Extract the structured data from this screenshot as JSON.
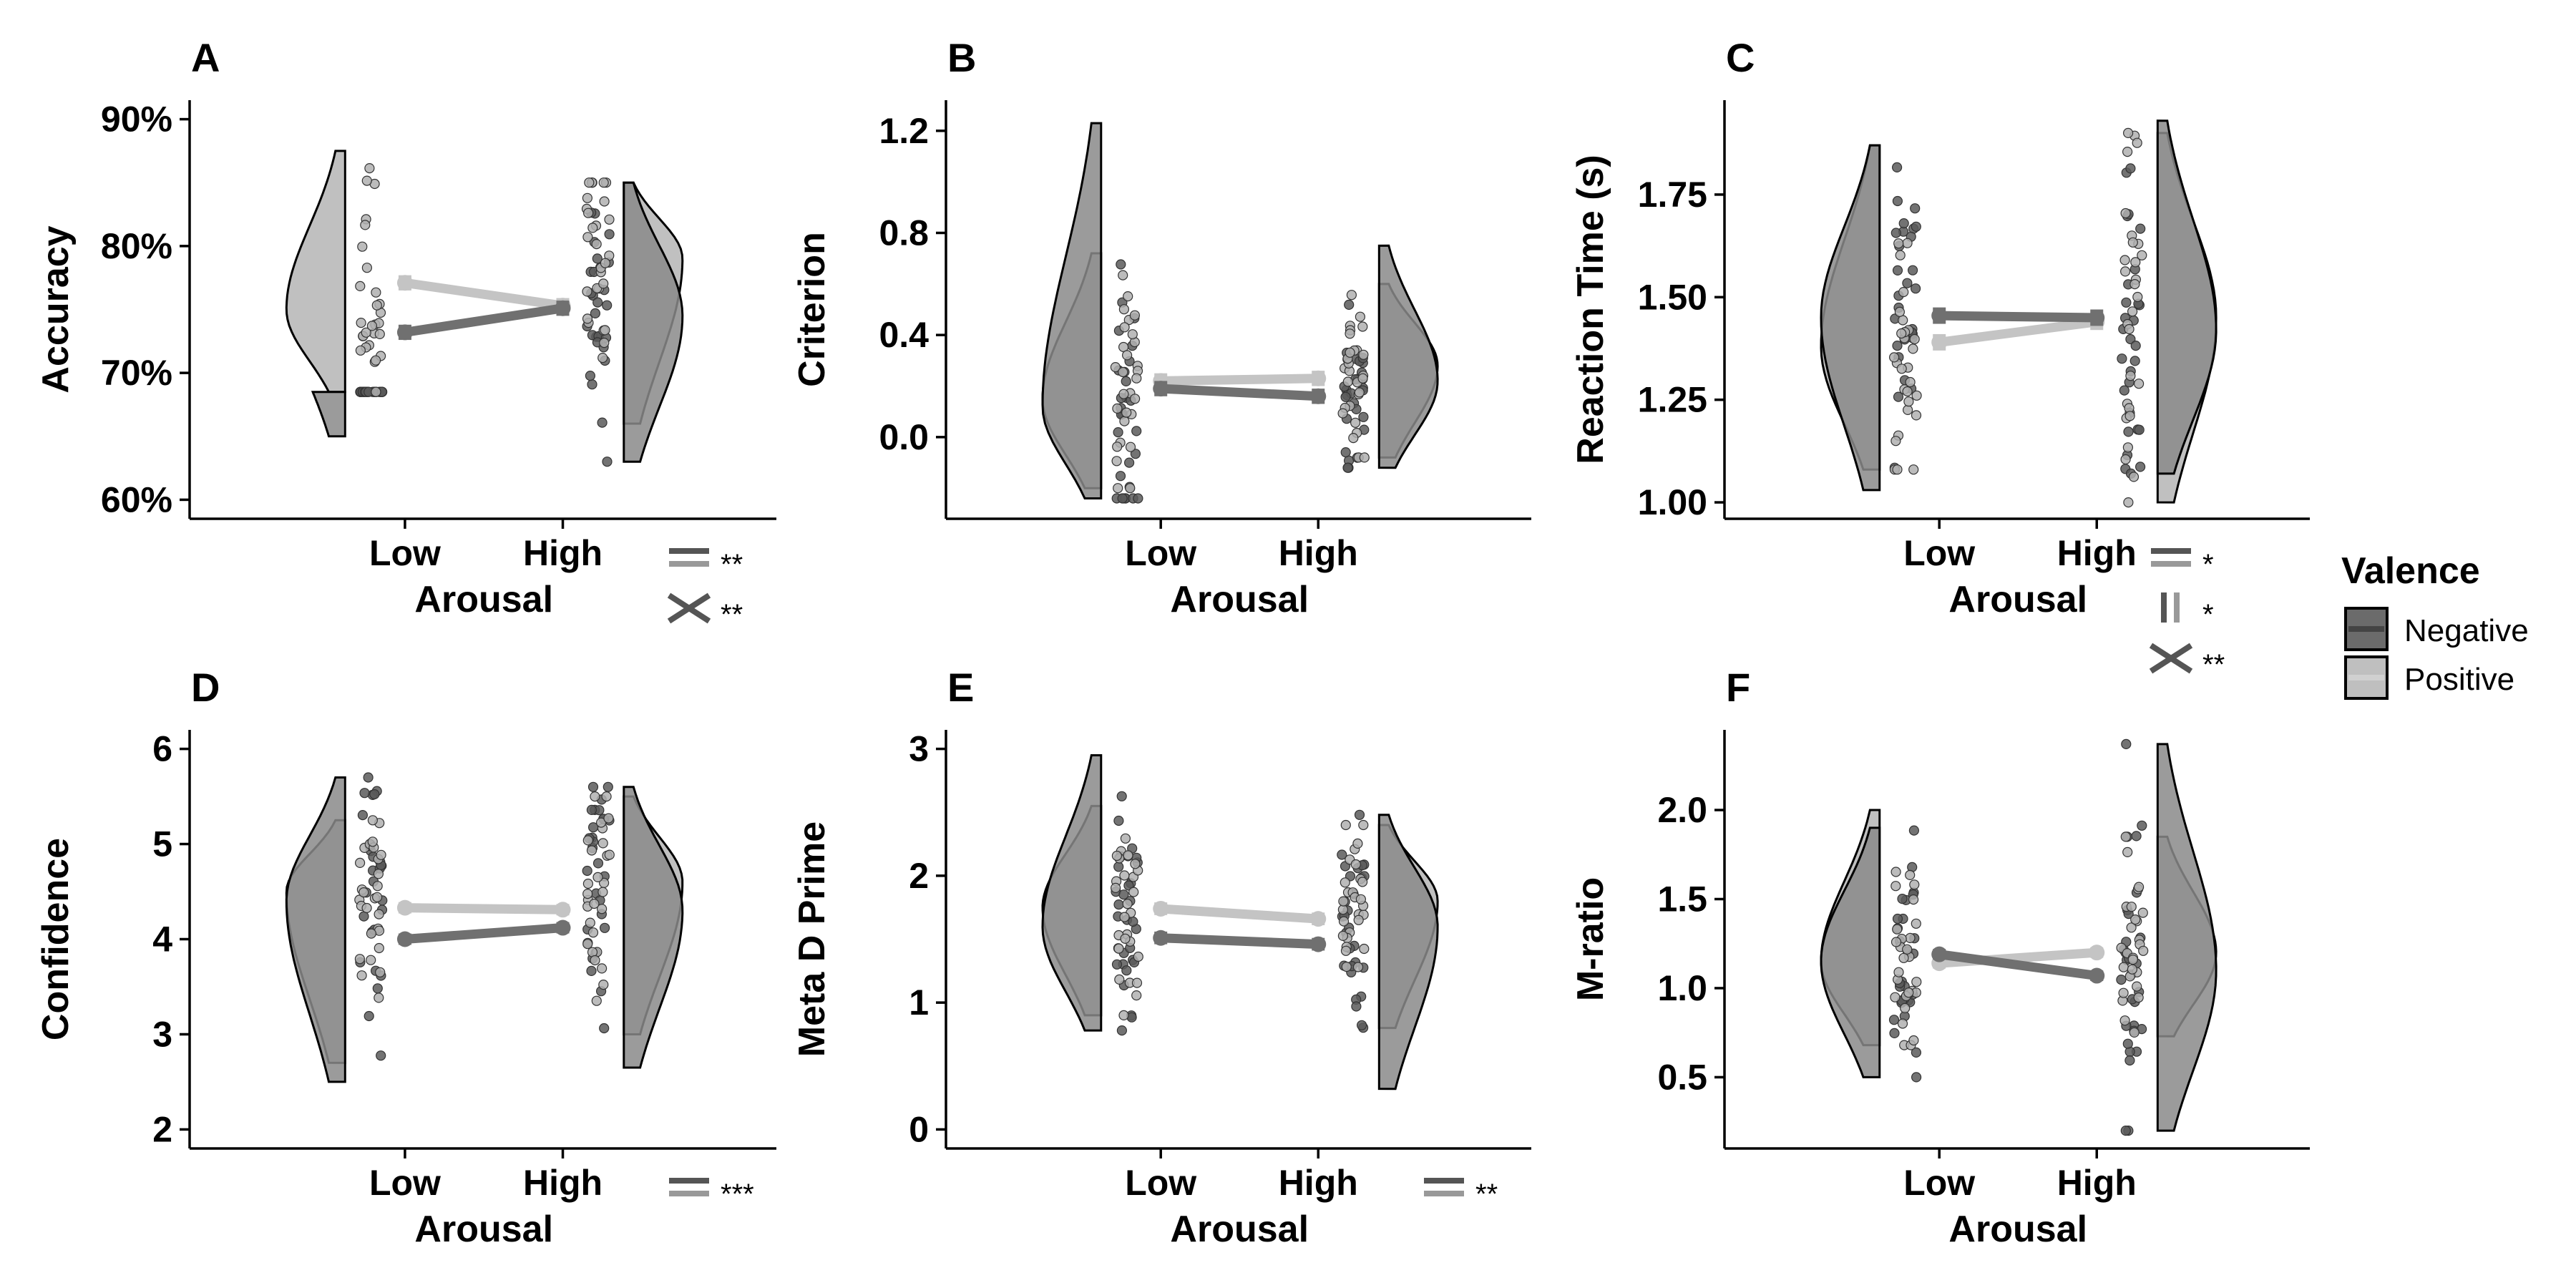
{
  "colors": {
    "negative": "#6b6b6b",
    "positive": "#bfbfbf",
    "neg_violin": "#8a8a8a",
    "pos_violin": "#b5b5b5",
    "axis": "#000000"
  },
  "legend": {
    "title": "Valence",
    "items": [
      {
        "label": "Negative",
        "color": "#6b6b6b"
      },
      {
        "label": "Positive",
        "color": "#bfbfbf"
      }
    ]
  },
  "chart_data": [
    {
      "panel": "A",
      "type": "raincloud",
      "ylabel": "Accuracy",
      "xlabel": "Arousal",
      "categories": [
        "Low",
        "High"
      ],
      "ylim": [
        0.585,
        0.915
      ],
      "yticks": [
        0.6,
        0.7,
        0.8,
        0.9
      ],
      "yticklabels": [
        "60%",
        "70%",
        "80%",
        "90%"
      ],
      "series": [
        {
          "name": "Negative",
          "values": [
            0.732,
            0.751
          ],
          "errors": [
            0.006,
            0.006
          ],
          "violin_low": [
            0.65,
            0.76,
            0.685
          ],
          "violin_high": [
            0.63,
            0.745,
            0.85
          ]
        },
        {
          "name": "Positive",
          "values": [
            0.771,
            0.753
          ],
          "errors": [
            0.006,
            0.006
          ],
          "violin_low": [
            0.685,
            0.75,
            0.875
          ],
          "violin_high": [
            0.66,
            0.79,
            0.85
          ]
        }
      ],
      "significance": [
        {
          "symbol": "=",
          "stars": "**"
        },
        {
          "symbol": "×",
          "stars": "**"
        }
      ]
    },
    {
      "panel": "B",
      "type": "raincloud",
      "ylabel": "Criterion",
      "xlabel": "Arousal",
      "categories": [
        "Low",
        "High"
      ],
      "ylim": [
        -0.32,
        1.32
      ],
      "yticks": [
        0.0,
        0.4,
        0.8,
        1.2
      ],
      "yticklabels": [
        "0.0",
        "0.4",
        "0.8",
        "1.2"
      ],
      "series": [
        {
          "name": "Negative",
          "values": [
            0.19,
            0.16
          ],
          "errors": [
            0.03,
            0.03
          ],
          "violin_low": [
            -0.24,
            0.12,
            1.23
          ],
          "violin_high": [
            -0.12,
            0.22,
            0.75
          ]
        },
        {
          "name": "Positive",
          "values": [
            0.22,
            0.23
          ],
          "errors": [
            0.03,
            0.03
          ],
          "violin_low": [
            -0.2,
            0.15,
            0.72
          ],
          "violin_high": [
            -0.08,
            0.28,
            0.6
          ]
        }
      ],
      "significance": []
    },
    {
      "panel": "C",
      "type": "raincloud",
      "ylabel": "Reaction Time (s)",
      "xlabel": "Arousal",
      "categories": [
        "Low",
        "High"
      ],
      "ylim": [
        0.96,
        1.98
      ],
      "yticks": [
        1.0,
        1.25,
        1.5,
        1.75
      ],
      "yticklabels": [
        "1.00",
        "1.25",
        "1.50",
        "1.75"
      ],
      "series": [
        {
          "name": "Negative",
          "values": [
            1.455,
            1.45
          ],
          "errors": [
            0.02,
            0.02
          ],
          "violin_low": [
            1.03,
            1.45,
            1.87
          ],
          "violin_high": [
            1.07,
            1.42,
            1.93
          ]
        },
        {
          "name": "Positive",
          "values": [
            1.39,
            1.44
          ],
          "errors": [
            0.02,
            0.02
          ],
          "violin_low": [
            1.08,
            1.38,
            1.87
          ],
          "violin_high": [
            1.0,
            1.45,
            1.9
          ]
        }
      ],
      "significance": [
        {
          "symbol": "=",
          "stars": "*"
        },
        {
          "symbol": "||",
          "stars": "*"
        },
        {
          "symbol": "×",
          "stars": "**"
        }
      ]
    },
    {
      "panel": "D",
      "type": "raincloud",
      "ylabel": "Confidence",
      "xlabel": "Arousal",
      "categories": [
        "Low",
        "High"
      ],
      "ylim": [
        1.8,
        6.2
      ],
      "yticks": [
        2,
        3,
        4,
        5,
        6
      ],
      "yticklabels": [
        "2",
        "3",
        "4",
        "5",
        "6"
      ],
      "series": [
        {
          "name": "Negative",
          "values": [
            4.0,
            4.12
          ],
          "errors": [
            0.06,
            0.06
          ],
          "violin_low": [
            2.5,
            4.4,
            5.7
          ],
          "violin_high": [
            2.65,
            4.3,
            5.6
          ]
        },
        {
          "name": "Positive",
          "values": [
            4.33,
            4.31
          ],
          "errors": [
            0.06,
            0.06
          ],
          "violin_low": [
            2.7,
            4.5,
            5.25
          ],
          "violin_high": [
            3.0,
            4.6,
            5.5
          ]
        }
      ],
      "significance": [
        {
          "symbol": "=",
          "stars": "***"
        }
      ]
    },
    {
      "panel": "E",
      "type": "raincloud",
      "ylabel": "Meta D Prime",
      "xlabel": "Arousal",
      "categories": [
        "Low",
        "High"
      ],
      "ylim": [
        -0.15,
        3.15
      ],
      "yticks": [
        0,
        1,
        2,
        3
      ],
      "yticklabels": [
        "0",
        "1",
        "2",
        "3"
      ],
      "series": [
        {
          "name": "Negative",
          "values": [
            1.51,
            1.46
          ],
          "errors": [
            0.05,
            0.05
          ],
          "violin_low": [
            0.78,
            1.6,
            2.95
          ],
          "violin_high": [
            0.32,
            1.6,
            2.48
          ]
        },
        {
          "name": "Positive",
          "values": [
            1.74,
            1.66
          ],
          "errors": [
            0.05,
            0.05
          ],
          "violin_low": [
            0.9,
            1.75,
            2.55
          ],
          "violin_high": [
            0.8,
            1.8,
            2.4
          ]
        }
      ],
      "significance": [
        {
          "symbol": "=",
          "stars": "**"
        }
      ]
    },
    {
      "panel": "F",
      "type": "raincloud",
      "ylabel": "M-ratio",
      "xlabel": "Arousal",
      "categories": [
        "Low",
        "High"
      ],
      "ylim": [
        0.1,
        2.45
      ],
      "yticks": [
        0.5,
        1.0,
        1.5,
        2.0
      ],
      "yticklabels": [
        "0.5",
        "1.0",
        "1.5",
        "2.0"
      ],
      "series": [
        {
          "name": "Negative",
          "values": [
            1.19,
            1.07
          ],
          "errors": [
            0.03,
            0.03
          ],
          "violin_low": [
            0.5,
            1.15,
            1.9
          ],
          "violin_high": [
            0.2,
            1.1,
            2.37
          ]
        },
        {
          "name": "Positive",
          "values": [
            1.14,
            1.2
          ],
          "errors": [
            0.03,
            0.03
          ],
          "violin_low": [
            0.68,
            1.15,
            2.0
          ],
          "violin_high": [
            0.73,
            1.2,
            1.85
          ]
        }
      ],
      "significance": []
    }
  ]
}
